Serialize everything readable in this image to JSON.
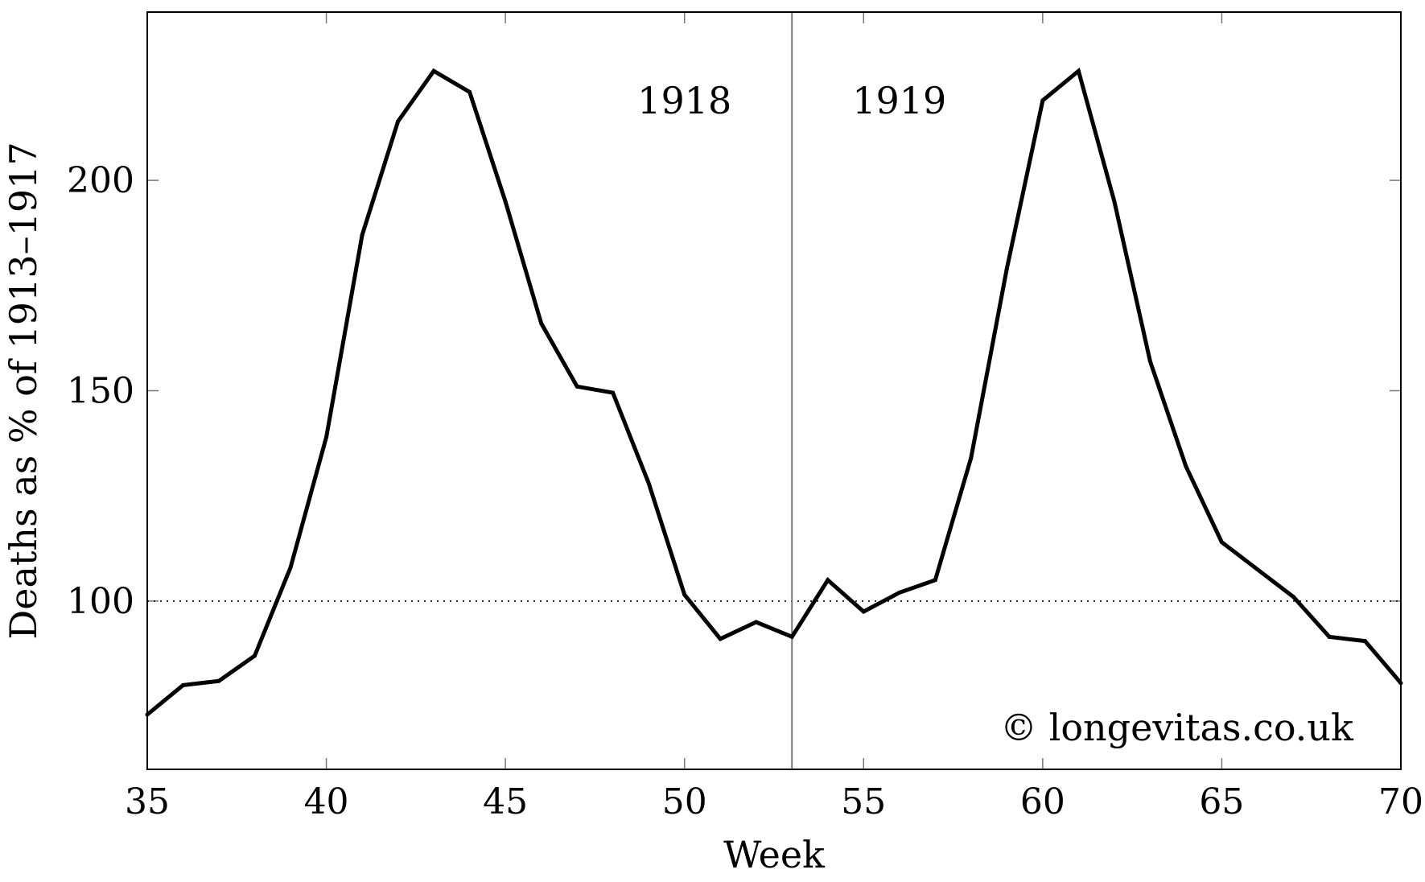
{
  "chart_data": {
    "type": "line",
    "xlabel": "Week",
    "ylabel": "Deaths as % of 1913–1917",
    "xlim": [
      35,
      70
    ],
    "ylim": [
      60,
      240
    ],
    "x_ticks": [
      35,
      40,
      45,
      50,
      55,
      60,
      65,
      70
    ],
    "y_ticks": [
      100,
      150,
      200
    ],
    "grid": false,
    "reference_line": {
      "y": 100,
      "style": "dotted"
    },
    "divider": {
      "x": 53
    },
    "annotations": [
      {
        "text": "1918",
        "x": 50,
        "y": 219
      },
      {
        "text": "1919",
        "x": 56,
        "y": 219
      }
    ],
    "watermark": "© longevitas.co.uk",
    "series": [
      {
        "x": [
          35,
          36,
          37,
          38,
          39,
          40,
          41,
          42,
          43,
          44,
          45,
          46,
          47,
          48,
          49,
          50,
          51,
          52,
          53,
          54,
          55,
          56,
          57,
          58,
          59,
          60,
          61,
          62,
          63,
          64,
          65,
          66,
          67,
          68,
          69,
          70
        ],
        "values": [
          73,
          80,
          81,
          87,
          108,
          139,
          187,
          214,
          226,
          221,
          195,
          166,
          151,
          149.5,
          128,
          101.5,
          91,
          95,
          91.5,
          105,
          97.5,
          102,
          105,
          134,
          179,
          219,
          226,
          195,
          157,
          132,
          114,
          107.5,
          101,
          91.5,
          90.5,
          80.5
        ]
      }
    ]
  }
}
